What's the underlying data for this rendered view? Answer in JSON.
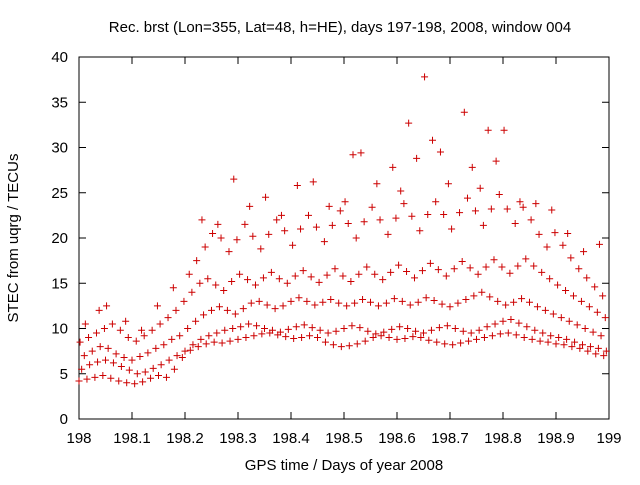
{
  "chart_data": {
    "type": "scatter",
    "title": "Rec. brst (Lon=355, Lat=48, h=HE), days 197-198, 2008, window 004",
    "xlabel": "GPS time / Days of year 2008",
    "ylabel": "STEC from uqrg / TECUs",
    "xlim": [
      198,
      199
    ],
    "ylim": [
      0,
      40
    ],
    "x_ticks": [
      "198",
      "198.1",
      "198.2",
      "198.3",
      "198.4",
      "198.5",
      "198.6",
      "198.7",
      "198.8",
      "198.9",
      "199"
    ],
    "y_ticks": [
      "0",
      "5",
      "10",
      "15",
      "20",
      "25",
      "30",
      "35",
      "40"
    ],
    "grid": false,
    "marker": "plus",
    "colors": {
      "points": "#cc0000",
      "axes": "#000000"
    },
    "series": [
      {
        "x": [
          198.0,
          198.015,
          198.03,
          198.045,
          198.06,
          198.075,
          198.09,
          198.105,
          198.12,
          198.135,
          198.15,
          198.165,
          198.18,
          198.195,
          198.21,
          198.225,
          198.24,
          198.255,
          198.27,
          198.285,
          198.3,
          198.315,
          198.33,
          198.345,
          198.36,
          198.375,
          198.39,
          198.405,
          198.42,
          198.435,
          198.45,
          198.465,
          198.48,
          198.495,
          198.51,
          198.525,
          198.54,
          198.555,
          198.57,
          198.585,
          198.6,
          198.615,
          198.63,
          198.645,
          198.66,
          198.675,
          198.69,
          198.705,
          198.72,
          198.735,
          198.75,
          198.765,
          198.78,
          198.795,
          198.81,
          198.825,
          198.84,
          198.855,
          198.87,
          198.885,
          198.9,
          198.915,
          198.93,
          198.945,
          198.96,
          198.975,
          198.99
        ],
        "y": [
          4.2,
          4.4,
          4.6,
          4.8,
          4.5,
          4.2,
          4.0,
          3.9,
          4.1,
          4.5,
          4.8,
          4.6,
          5.5,
          6.8,
          7.6,
          8.0,
          8.3,
          8.5,
          8.4,
          8.6,
          8.8,
          9.0,
          9.2,
          9.4,
          9.5,
          9.3,
          9.1,
          8.9,
          9.0,
          9.2,
          9.0,
          8.5,
          8.2,
          8.0,
          8.1,
          8.3,
          8.6,
          9.0,
          9.2,
          9.0,
          8.8,
          8.9,
          9.1,
          9.0,
          8.7,
          8.5,
          8.3,
          8.2,
          8.4,
          8.6,
          8.8,
          9.0,
          9.2,
          9.4,
          9.5,
          9.3,
          9.0,
          8.8,
          8.6,
          8.5,
          8.3,
          8.2,
          8.0,
          7.8,
          7.5,
          7.2,
          7.0
        ]
      },
      {
        "x": [
          198.005,
          198.02,
          198.035,
          198.05,
          198.065,
          198.08,
          198.095,
          198.11,
          198.125,
          198.14,
          198.155,
          198.17,
          198.185,
          198.2,
          198.215,
          198.23,
          198.245,
          198.26,
          198.275,
          198.29,
          198.305,
          198.32,
          198.335,
          198.35,
          198.365,
          198.38,
          198.395,
          198.41,
          198.425,
          198.44,
          198.455,
          198.47,
          198.485,
          198.5,
          198.515,
          198.53,
          198.545,
          198.56,
          198.575,
          198.59,
          198.605,
          198.62,
          198.635,
          198.65,
          198.665,
          198.68,
          198.695,
          198.71,
          198.725,
          198.74,
          198.755,
          198.77,
          198.785,
          198.8,
          198.815,
          198.83,
          198.845,
          198.86,
          198.875,
          198.89,
          198.905,
          198.92,
          198.935,
          198.95,
          198.965,
          198.98,
          198.995
        ],
        "y": [
          5.5,
          6.0,
          6.3,
          6.5,
          6.2,
          5.8,
          5.4,
          5.0,
          5.2,
          5.6,
          6.0,
          6.5,
          7.0,
          7.5,
          8.2,
          8.8,
          9.2,
          9.5,
          9.8,
          10.0,
          10.2,
          10.5,
          10.3,
          10.0,
          9.8,
          9.6,
          9.9,
          10.2,
          10.4,
          10.1,
          9.8,
          9.5,
          9.7,
          10.0,
          10.3,
          10.1,
          9.7,
          9.4,
          9.6,
          9.9,
          10.2,
          10.0,
          9.7,
          9.5,
          9.8,
          10.1,
          10.3,
          10.0,
          9.7,
          9.5,
          9.8,
          10.2,
          10.5,
          10.8,
          11.0,
          10.6,
          10.2,
          9.8,
          9.5,
          9.2,
          9.0,
          8.8,
          8.5,
          8.2,
          8.0,
          7.8,
          7.5
        ]
      },
      {
        "x": [
          198.01,
          198.025,
          198.04,
          198.055,
          198.07,
          198.085,
          198.1,
          198.115,
          198.13,
          198.145,
          198.16,
          198.175,
          198.19,
          198.205,
          198.22,
          198.235,
          198.25,
          198.265,
          198.28,
          198.295,
          198.31,
          198.325,
          198.34,
          198.355,
          198.37,
          198.385,
          198.4,
          198.415,
          198.43,
          198.445,
          198.46,
          198.475,
          198.49,
          198.505,
          198.52,
          198.535,
          198.55,
          198.565,
          198.58,
          198.595,
          198.61,
          198.625,
          198.64,
          198.655,
          198.67,
          198.685,
          198.7,
          198.715,
          198.73,
          198.745,
          198.76,
          198.775,
          198.79,
          198.805,
          198.82,
          198.835,
          198.85,
          198.865,
          198.88,
          198.895,
          198.91,
          198.925,
          198.94,
          198.955,
          198.97,
          198.985
        ],
        "y": [
          7.0,
          7.5,
          8.0,
          7.8,
          7.2,
          6.8,
          6.5,
          6.9,
          7.3,
          7.8,
          8.2,
          8.8,
          9.2,
          10.0,
          10.8,
          11.5,
          12.0,
          12.4,
          12.0,
          11.6,
          12.2,
          12.8,
          13.0,
          12.6,
          12.2,
          12.5,
          13.0,
          13.4,
          13.0,
          12.6,
          12.9,
          13.2,
          12.8,
          12.5,
          12.8,
          13.2,
          12.9,
          12.5,
          12.8,
          13.3,
          13.0,
          12.6,
          12.9,
          13.4,
          13.1,
          12.7,
          12.4,
          12.8,
          13.2,
          13.6,
          14.0,
          13.5,
          13.0,
          12.6,
          12.9,
          13.3,
          12.9,
          12.4,
          12.0,
          11.6,
          11.2,
          10.8,
          10.4,
          10.0,
          9.6,
          9.2
        ]
      },
      {
        "x": [
          198.002,
          198.018,
          198.033,
          198.048,
          198.063,
          198.078,
          198.093,
          198.108,
          198.123,
          198.138,
          198.153,
          198.168,
          198.183,
          198.198,
          198.213,
          198.228,
          198.243,
          198.258,
          198.273,
          198.288,
          198.303,
          198.318,
          198.333,
          198.348,
          198.363,
          198.378,
          198.393,
          198.408,
          198.423,
          198.438,
          198.453,
          198.468,
          198.483,
          198.498,
          198.513,
          198.528,
          198.543,
          198.558,
          198.573,
          198.588,
          198.603,
          198.618,
          198.633,
          198.648,
          198.663,
          198.678,
          198.693,
          198.708,
          198.723,
          198.738,
          198.753,
          198.768,
          198.783,
          198.798,
          198.813,
          198.828,
          198.843,
          198.858,
          198.873,
          198.888,
          198.903,
          198.918,
          198.933,
          198.948,
          198.963,
          198.978,
          198.993
        ],
        "y": [
          8.5,
          9.0,
          9.5,
          10.0,
          10.5,
          9.8,
          9.0,
          8.6,
          9.2,
          9.8,
          10.5,
          11.2,
          12.0,
          13.0,
          14.0,
          15.0,
          15.5,
          14.8,
          14.2,
          15.2,
          16.0,
          15.4,
          14.8,
          15.6,
          16.2,
          15.5,
          15.0,
          15.8,
          16.4,
          15.7,
          15.1,
          15.9,
          16.6,
          15.8,
          15.2,
          16.0,
          16.8,
          16.0,
          15.4,
          16.2,
          17.0,
          16.3,
          15.6,
          16.4,
          17.2,
          16.5,
          15.8,
          16.6,
          17.4,
          16.7,
          16.0,
          16.8,
          17.6,
          16.8,
          16.1,
          16.9,
          17.7,
          16.9,
          16.2,
          15.5,
          14.8,
          14.2,
          13.6,
          13.0,
          12.4,
          11.8,
          11.2
        ]
      },
      {
        "x": [
          198.012,
          198.038,
          198.052,
          198.088,
          198.118,
          198.148,
          198.178,
          198.208,
          198.222,
          198.238,
          198.252,
          198.268,
          198.283,
          198.298,
          198.313,
          198.328,
          198.343,
          198.358,
          198.373,
          198.388,
          198.403,
          198.418,
          198.433,
          198.448,
          198.463,
          198.478,
          198.493,
          198.508,
          198.523,
          198.538,
          198.553,
          198.568,
          198.583,
          198.598,
          198.613,
          198.628,
          198.643,
          198.658,
          198.673,
          198.688,
          198.703,
          198.718,
          198.733,
          198.748,
          198.763,
          198.778,
          198.793,
          198.808,
          198.823,
          198.838,
          198.853,
          198.868,
          198.883,
          198.898,
          198.913,
          198.928,
          198.943,
          198.958,
          198.973,
          198.988
        ],
        "y": [
          10.5,
          12.0,
          12.5,
          10.8,
          9.8,
          12.5,
          14.5,
          16.0,
          17.5,
          19.0,
          20.5,
          20.0,
          18.5,
          19.8,
          21.5,
          20.2,
          18.8,
          20.4,
          22.0,
          20.8,
          19.2,
          21.0,
          22.5,
          21.2,
          19.6,
          21.4,
          23.0,
          21.6,
          20.0,
          21.8,
          23.4,
          22.0,
          20.4,
          22.2,
          23.8,
          22.4,
          20.8,
          22.6,
          24.0,
          22.6,
          21.0,
          22.8,
          24.4,
          23.0,
          21.4,
          23.2,
          24.8,
          23.2,
          21.6,
          23.4,
          22.0,
          20.4,
          19.0,
          20.6,
          19.2,
          17.8,
          16.6,
          15.6,
          14.6,
          13.6
        ]
      },
      {
        "x": [
          198.232,
          198.262,
          198.292,
          198.322,
          198.352,
          198.382,
          198.412,
          198.442,
          198.472,
          198.502,
          198.517,
          198.532,
          198.562,
          198.592,
          198.607,
          198.622,
          198.637,
          198.652,
          198.667,
          198.682,
          198.697,
          198.727,
          198.742,
          198.757,
          198.772,
          198.787,
          198.802,
          198.832,
          198.862,
          198.892,
          198.922,
          198.952,
          198.982
        ],
        "y": [
          22.0,
          21.5,
          26.5,
          23.5,
          24.5,
          22.5,
          25.8,
          26.2,
          23.5,
          24.0,
          29.2,
          29.4,
          26.0,
          27.8,
          25.2,
          32.7,
          28.8,
          37.8,
          30.8,
          29.5,
          26.0,
          33.9,
          27.8,
          25.5,
          31.9,
          28.5,
          31.9,
          24.0,
          23.8,
          23.1,
          20.5,
          18.5,
          19.3
        ]
      }
    ]
  }
}
